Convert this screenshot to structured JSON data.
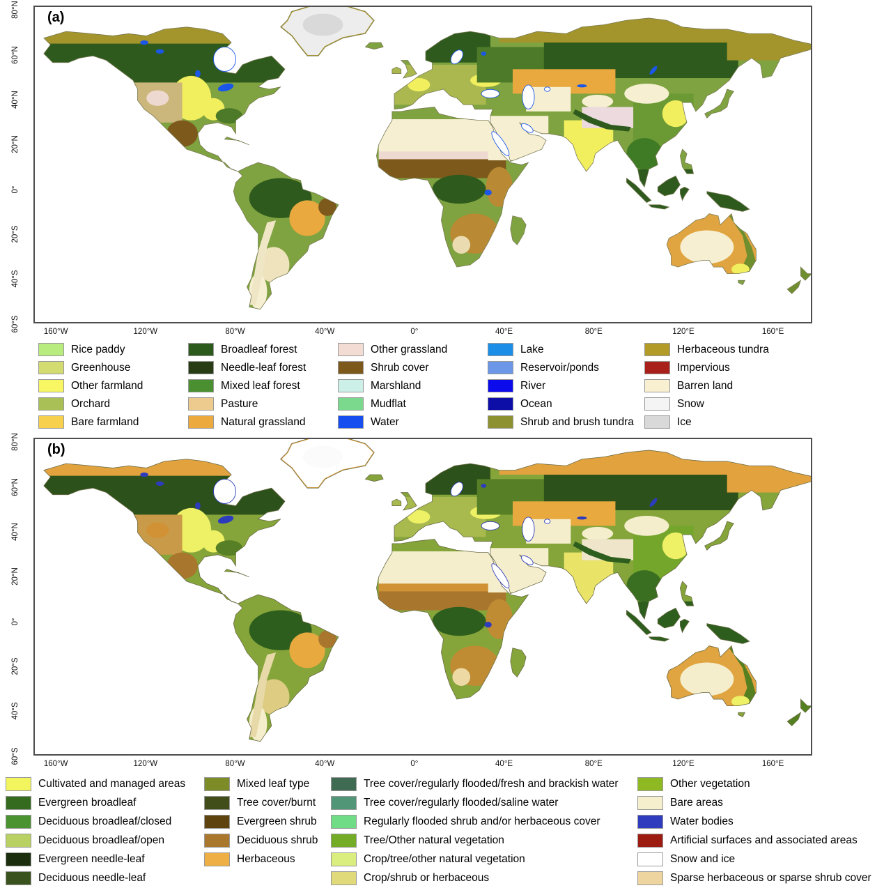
{
  "figure": {
    "panel_a": {
      "label": "(a)"
    },
    "panel_b": {
      "label": "(b)"
    },
    "axis": {
      "lat_ticks": [
        "80°N",
        "60°N",
        "40°N",
        "20°N",
        "0°",
        "20°S",
        "40°S",
        "60°S"
      ],
      "lon_ticks": [
        "160°W",
        "120°W",
        "80°W",
        "40°W",
        "0°",
        "40°E",
        "80°E",
        "120°E",
        "160°E"
      ]
    },
    "legend_a": {
      "columns": [
        [
          {
            "label": "Rice paddy",
            "color": "#b9ec7e"
          },
          {
            "label": "Greenhouse",
            "color": "#d2dc71"
          },
          {
            "label": "Other farmland",
            "color": "#f8f763"
          },
          {
            "label": "Orchard",
            "color": "#a9c057"
          },
          {
            "label": "Bare farmland",
            "color": "#f7d04e"
          }
        ],
        [
          {
            "label": "Broadleaf forest",
            "color": "#2c591c"
          },
          {
            "label": "Needle-leaf forest",
            "color": "#273c15"
          },
          {
            "label": "Mixed leaf forest",
            "color": "#4a9031"
          },
          {
            "label": "Pasture",
            "color": "#edcb8e"
          },
          {
            "label": "Natural grassland",
            "color": "#eba93e"
          }
        ],
        [
          {
            "label": "Other grassland",
            "color": "#f2dcd3"
          },
          {
            "label": "Shrub cover",
            "color": "#7c591b"
          },
          {
            "label": "Marshland",
            "color": "#ccf0e8"
          },
          {
            "label": "Mudflat",
            "color": "#7bd98d"
          },
          {
            "label": "Water",
            "color": "#164ef0"
          }
        ],
        [
          {
            "label": "Lake",
            "color": "#1b8fe8"
          },
          {
            "label": "Reservoir/ponds",
            "color": "#6c96e8"
          },
          {
            "label": "River",
            "color": "#0b0bec"
          },
          {
            "label": "Ocean",
            "color": "#0d0da8"
          },
          {
            "label": "Shrub and brush tundra",
            "color": "#8d9130"
          }
        ],
        [
          {
            "label": "Herbaceous tundra",
            "color": "#b29c27"
          },
          {
            "label": "Impervious",
            "color": "#a82019"
          },
          {
            "label": "Barren land",
            "color": "#f8f0d0"
          },
          {
            "label": "Snow",
            "color": "#f4f4f4"
          },
          {
            "label": "Ice",
            "color": "#d9d9d9"
          }
        ]
      ]
    },
    "legend_b": {
      "columns": [
        [
          {
            "label": "Cultivated and managed areas",
            "color": "#f3f55f"
          },
          {
            "label": "Evergreen broadleaf",
            "color": "#356b1e"
          },
          {
            "label": "Deciduous broadleaf/closed",
            "color": "#4b9231"
          },
          {
            "label": "Deciduous broadleaf/open",
            "color": "#b9d162"
          },
          {
            "label": "Evergreen needle-leaf",
            "color": "#1b2e0d"
          },
          {
            "label": "Deciduous needle-leaf",
            "color": "#3a521d"
          }
        ],
        [
          {
            "label": "Mixed leaf type",
            "color": "#7d8c26"
          },
          {
            "label": "Tree cover/burnt",
            "color": "#414e19"
          },
          {
            "label": "Evergreen shrub",
            "color": "#5f430f"
          },
          {
            "label": "Deciduous shrub",
            "color": "#a9782c"
          },
          {
            "label": "Herbaceous",
            "color": "#eeaf45"
          }
        ],
        [
          {
            "label": "Tree cover/regularly flooded/fresh and brackish water",
            "color": "#3f6b53"
          },
          {
            "label": "Tree cover/regularly flooded/saline water",
            "color": "#529678"
          },
          {
            "label": "Regularly flooded shrub and/or herbaceous cover",
            "color": "#71dc86"
          },
          {
            "label": "Tree/Other natural vegetation",
            "color": "#74ab27"
          },
          {
            "label": "Crop/tree/other natural vegetation",
            "color": "#d9ee7e"
          },
          {
            "label": "Crop/shrub or herbaceous",
            "color": "#e1da7a"
          }
        ],
        [
          {
            "label": "Other vegetation",
            "color": "#8fb922"
          },
          {
            "label": "Bare areas",
            "color": "#f5efcd"
          },
          {
            "label": "Water bodies",
            "color": "#2e3cbd"
          },
          {
            "label": "Artificial surfaces and associated areas",
            "color": "#9c1c12"
          },
          {
            "label": "Snow and ice",
            "color": "#ffffff"
          },
          {
            "label": "Sparse herbaceous or sparse shrub cover",
            "color": "#eed5a0"
          }
        ]
      ]
    },
    "map_palettes": {
      "a": {
        "ocean": "#ffffff",
        "base": "#7fa340",
        "boreal": "#2e5b1d",
        "rainforest": "#2e5b1d",
        "tundra": "#a3952c",
        "farmland": "#f2ef5f",
        "grassland": "#e9a93f",
        "shrub": "#7d591c",
        "desert": "#f6efd2",
        "sahel": "#eed9d0",
        "savanna": "#b98a33",
        "tibet": "#ecdade",
        "pampa": "#efe3bd",
        "andes": "#efe6c6",
        "kalahari": "#eadbb0",
        "europe": "#aab84f",
        "emix": "#4c7a28",
        "west_dry": "#cbb67b",
        "china": "#6b9a35",
        "india": "#f2ef5f",
        "se_forest": "#3f7a25",
        "aus_base": "#e0a440",
        "aus_coast": "#6f8f2e",
        "greenland": "#ededed",
        "greenland_stroke": "#b09b26",
        "ice": "#d9d9d9",
        "water": "#1a57e8",
        "coast": "#7a7a55"
      },
      "b": {
        "ocean": "#ffffff",
        "base": "#85a53a",
        "boreal": "#2d511a",
        "rainforest": "#2d5e1e",
        "tundra": "#e2a33f",
        "farmland": "#eef065",
        "grassland": "#e8a93f",
        "shrub": "#a8762d",
        "desert": "#f5eecd",
        "sahel": "#d19135",
        "savanna": "#c08c33",
        "tibet": "#efe5cb",
        "pampa": "#ddcc82",
        "andes": "#e8d9a8",
        "kalahari": "#ecd9a4",
        "europe": "#a8b94e",
        "emix": "#567f26",
        "west_dry": "#c99a48",
        "china": "#74a62c",
        "india": "#e9e468",
        "se_forest": "#3a6f22",
        "aus_base": "#e0a440",
        "aus_coast": "#55801f",
        "greenland": "#ffffff",
        "greenland_stroke": "#e2a33f",
        "ice": "#fbfbfb",
        "water": "#2c3cbd",
        "coast": "#6a6a45"
      }
    }
  }
}
